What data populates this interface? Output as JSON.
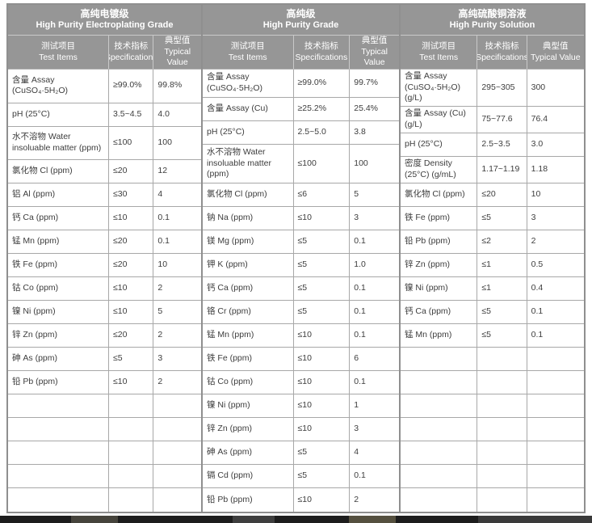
{
  "colors": {
    "header_bg": "#969696",
    "header_text": "#ffffff",
    "cell_border": "#a8a8a8",
    "section_border": "#8f8f8f",
    "cell_text": "#3d3d3d",
    "page_bg": "#ffffff",
    "strip_bg": "#1d1d1d"
  },
  "sections": [
    {
      "title_zh": "高纯电镀级",
      "title_en": "High Purity Electroplating Grade",
      "columns": [
        {
          "zh": "测试项目",
          "en": "Test Items"
        },
        {
          "zh": "技术指标",
          "en": "Specifications"
        },
        {
          "zh": "典型值",
          "en": "Typical Value"
        }
      ],
      "rows": [
        {
          "item": "含量 Assay (CuSO₄·5H₂O)",
          "spec": "≥99.0%",
          "value": "99.8%"
        },
        {
          "item": "pH (25°C)",
          "spec": "3.5~4.5",
          "value": "4.0"
        },
        {
          "item": "水不溶物 Water insoluable matter (ppm)",
          "spec": "≤100",
          "value": "100"
        },
        {
          "item": "氯化物 Cl (ppm)",
          "spec": "≤20",
          "value": "12"
        },
        {
          "item": "铝 Al (ppm)",
          "spec": "≤30",
          "value": "4"
        },
        {
          "item": "钙 Ca (ppm)",
          "spec": "≤10",
          "value": "0.1"
        },
        {
          "item": "锰 Mn (ppm)",
          "spec": "≤20",
          "value": "0.1"
        },
        {
          "item": "铁 Fe (ppm)",
          "spec": "≤20",
          "value": "10"
        },
        {
          "item": "钴 Co (ppm)",
          "spec": "≤10",
          "value": "2"
        },
        {
          "item": "镍 Ni (ppm)",
          "spec": "≤10",
          "value": "5"
        },
        {
          "item": "锌 Zn (ppm)",
          "spec": "≤20",
          "value": "2"
        },
        {
          "item": "砷 As (ppm)",
          "spec": "≤5",
          "value": "3"
        },
        {
          "item": "铅 Pb (ppm)",
          "spec": "≤10",
          "value": "2"
        }
      ],
      "empty_rows": 5
    },
    {
      "title_zh": "高纯级",
      "title_en": "High Purity Grade",
      "columns": [
        {
          "zh": "测试项目",
          "en": "Test Items"
        },
        {
          "zh": "技术指标",
          "en": "Specifications"
        },
        {
          "zh": "典型值",
          "en": "Typical Value"
        }
      ],
      "rows": [
        {
          "item": "含量 Assay (CuSO₄·5H₂O)",
          "spec": "≥99.0%",
          "value": "99.7%"
        },
        {
          "item": "含量 Assay (Cu)",
          "spec": "≥25.2%",
          "value": "25.4%"
        },
        {
          "item": "pH (25°C)",
          "spec": "2.5~5.0",
          "value": "3.8"
        },
        {
          "item": "水不溶物 Water insoluable matter (ppm)",
          "spec": "≤100",
          "value": "100"
        },
        {
          "item": "氯化物 Cl (ppm)",
          "spec": "≤6",
          "value": "5"
        },
        {
          "item": "钠 Na (ppm)",
          "spec": "≤10",
          "value": "3"
        },
        {
          "item": "镁 Mg (ppm)",
          "spec": "≤5",
          "value": "0.1"
        },
        {
          "item": "钾 K (ppm)",
          "spec": "≤5",
          "value": "1.0"
        },
        {
          "item": "钙 Ca (ppm)",
          "spec": "≤5",
          "value": "0.1"
        },
        {
          "item": "铬 Cr (ppm)",
          "spec": "≤5",
          "value": "0.1"
        },
        {
          "item": "锰 Mn (ppm)",
          "spec": "≤10",
          "value": "0.1"
        },
        {
          "item": "铁 Fe (ppm)",
          "spec": "≤10",
          "value": "6"
        },
        {
          "item": "钴 Co (ppm)",
          "spec": "≤10",
          "value": "0.1"
        },
        {
          "item": "镍 Ni (ppm)",
          "spec": "≤10",
          "value": "1"
        },
        {
          "item": "锌 Zn (ppm)",
          "spec": "≤10",
          "value": "3"
        },
        {
          "item": "砷 As (ppm)",
          "spec": "≤5",
          "value": "4"
        },
        {
          "item": "镉 Cd (ppm)",
          "spec": "≤5",
          "value": "0.1"
        },
        {
          "item": "铅 Pb (ppm)",
          "spec": "≤10",
          "value": "2"
        }
      ],
      "empty_rows": 0
    },
    {
      "title_zh": "高纯硫酸铜溶液",
      "title_en": "High Purity Solution",
      "columns": [
        {
          "zh": "测试项目",
          "en": "Test Items"
        },
        {
          "zh": "技术指标",
          "en": "Specifications"
        },
        {
          "zh": "典型值",
          "en": "Typical Value"
        }
      ],
      "rows": [
        {
          "item": "含量 Assay (CuSO₄·5H₂O) (g/L)",
          "spec": "295~305",
          "value": "300"
        },
        {
          "item": "含量 Assay (Cu) (g/L)",
          "spec": "75~77.6",
          "value": "76.4"
        },
        {
          "item": "pH (25°C)",
          "spec": "2.5~3.5",
          "value": "3.0"
        },
        {
          "item": "密度 Density (25°C) (g/mL)",
          "spec": "1.17~1.19",
          "value": "1.18"
        },
        {
          "item": "氯化物 Cl (ppm)",
          "spec": "≤20",
          "value": "10"
        },
        {
          "item": "铁 Fe (ppm)",
          "spec": "≤5",
          "value": "3"
        },
        {
          "item": "铅 Pb (ppm)",
          "spec": "≤2",
          "value": "2"
        },
        {
          "item": "锌 Zn (ppm)",
          "spec": "≤1",
          "value": "0.5"
        },
        {
          "item": "镍 Ni (ppm)",
          "spec": "≤1",
          "value": "0.4"
        },
        {
          "item": "钙 Ca (ppm)",
          "spec": "≤5",
          "value": "0.1"
        },
        {
          "item": "锰 Mn (ppm)",
          "spec": "≤5",
          "value": "0.1"
        }
      ],
      "empty_rows": 7
    }
  ]
}
